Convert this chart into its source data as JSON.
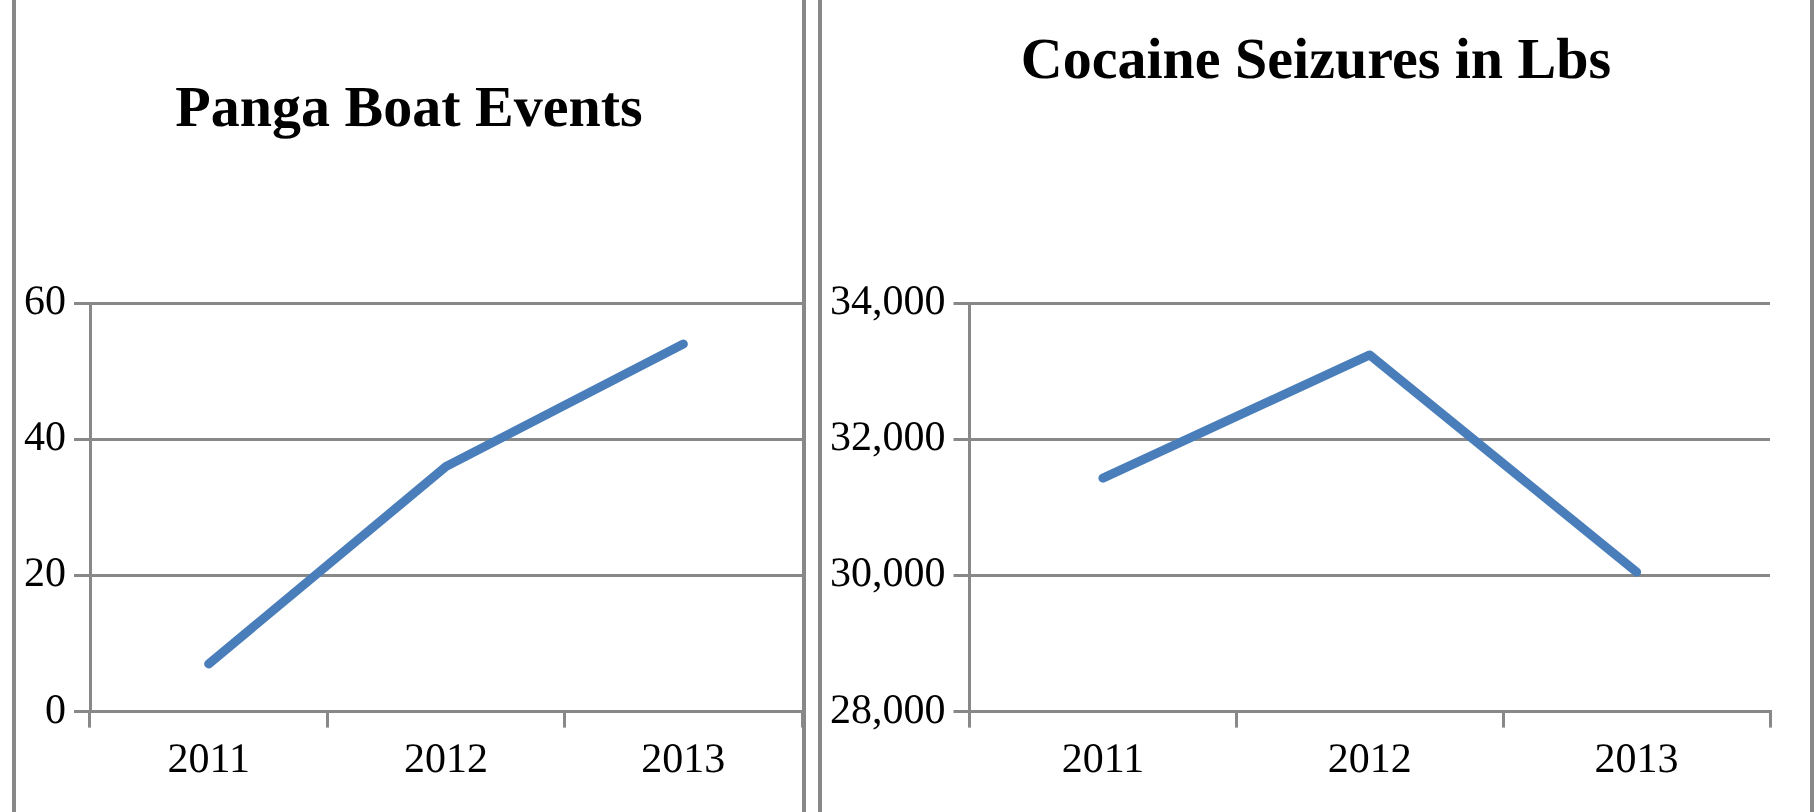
{
  "chart_data": [
    {
      "type": "line",
      "title": "Panga Boat Events",
      "categories": [
        "2011",
        "2012",
        "2013"
      ],
      "series": [
        {
          "color": "#4a7ebb",
          "values": [
            7,
            36,
            54
          ]
        }
      ],
      "ylim": [
        0,
        60
      ],
      "yticks": [
        0,
        20,
        40,
        60
      ],
      "grid": "y",
      "legend": false,
      "marker": "none"
    },
    {
      "type": "line",
      "title": "Cocaine Seizures in Lbs",
      "categories": [
        "2011",
        "2012",
        "2013"
      ],
      "series": [
        {
          "color": "#4a7ebb",
          "values": [
            31430,
            33240,
            30050
          ]
        }
      ],
      "ylim": [
        28000,
        34000
      ],
      "yticks": [
        {
          "value": 28000,
          "label": "28,000"
        },
        {
          "value": 30000,
          "label": "30,000"
        },
        {
          "value": 32000,
          "label": "32,000"
        },
        {
          "value": 34000,
          "label": "34,000"
        }
      ],
      "grid": "y",
      "legend": false,
      "marker": "none"
    }
  ]
}
